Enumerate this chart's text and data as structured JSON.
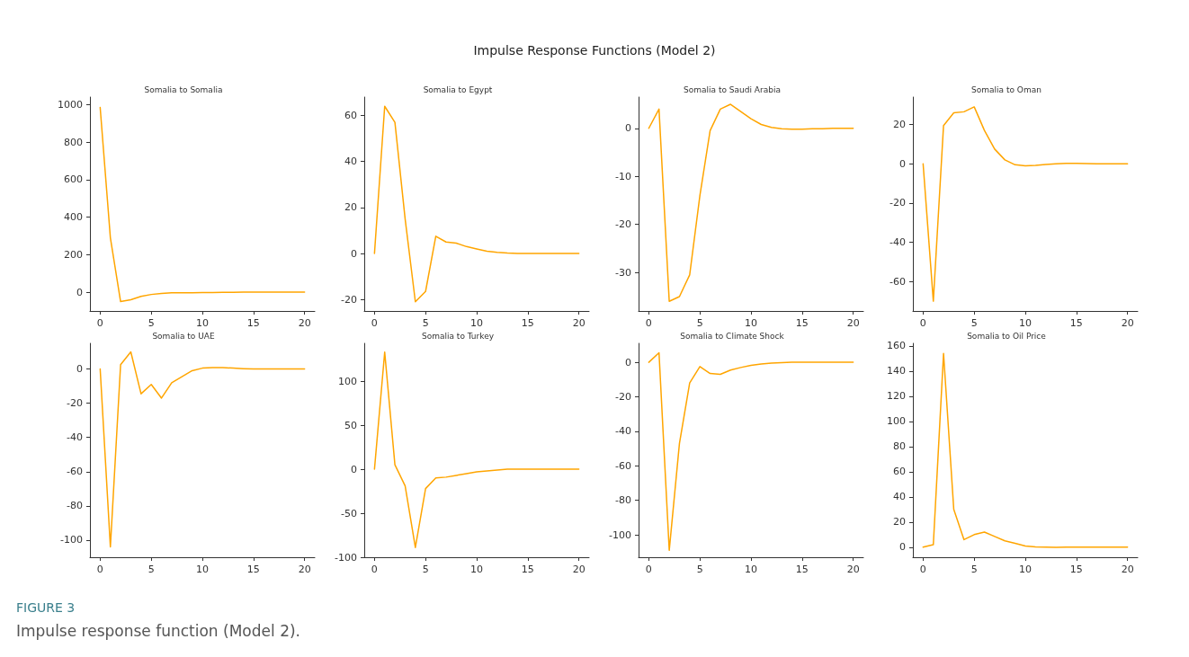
{
  "chart_data": [
    {
      "type": "line",
      "title": "Somalia to Somalia",
      "annotations": [
        "Impulse Response Functions (Model 2)"
      ],
      "x": [
        0,
        1,
        2,
        3,
        4,
        5,
        6,
        7,
        8,
        9,
        10,
        11,
        12,
        13,
        14,
        15,
        16,
        17,
        18,
        19,
        20
      ],
      "xlim": [
        -1,
        21
      ],
      "xticks": [
        0,
        5,
        10,
        15,
        20
      ],
      "ylim": [
        -100,
        1040
      ],
      "yticks": [
        0,
        200,
        400,
        600,
        800,
        1000
      ],
      "grid": false,
      "marker": "none",
      "line_style": "solid",
      "series": [
        {
          "color": "#ffa500",
          "values": [
            985,
            290,
            -50,
            -40,
            -22,
            -12,
            -7,
            -3,
            -3,
            -3,
            -2,
            -2,
            -1,
            -1,
            0,
            0,
            0,
            0,
            0,
            0,
            0
          ]
        }
      ]
    },
    {
      "type": "line",
      "title": "Somalia to Egypt",
      "x": [
        0,
        1,
        2,
        3,
        4,
        5,
        6,
        7,
        8,
        9,
        10,
        11,
        12,
        13,
        14,
        15,
        16,
        17,
        18,
        19,
        20
      ],
      "xlim": [
        -1,
        21
      ],
      "xticks": [
        0,
        5,
        10,
        15,
        20
      ],
      "ylim": [
        -25,
        68
      ],
      "yticks": [
        -20,
        0,
        20,
        40,
        60
      ],
      "grid": false,
      "marker": "none",
      "line_style": "solid",
      "series": [
        {
          "color": "#ffa500",
          "values": [
            0,
            64,
            57,
            15,
            -21,
            -16.5,
            7.5,
            5,
            4.5,
            3,
            2,
            1,
            0.5,
            0.2,
            0,
            0,
            0,
            0,
            0,
            0,
            0
          ]
        }
      ]
    },
    {
      "type": "line",
      "title": "Somalia to Saudi Arabia",
      "x": [
        0,
        1,
        2,
        3,
        4,
        5,
        6,
        7,
        8,
        9,
        10,
        11,
        12,
        13,
        14,
        15,
        16,
        17,
        18,
        19,
        20
      ],
      "xlim": [
        -1,
        21
      ],
      "xticks": [
        0,
        5,
        10,
        15,
        20
      ],
      "ylim": [
        -38,
        6.5
      ],
      "yticks": [
        -30,
        -20,
        -10,
        0
      ],
      "grid": false,
      "marker": "none",
      "line_style": "solid",
      "series": [
        {
          "color": "#ffa500",
          "values": [
            0,
            4,
            -36,
            -35,
            -30.5,
            -14,
            -0.5,
            4,
            5,
            3.5,
            2,
            0.8,
            0.2,
            -0.1,
            -0.2,
            -0.2,
            -0.1,
            -0.1,
            0,
            0,
            0
          ]
        }
      ]
    },
    {
      "type": "line",
      "title": "Somalia to Oman",
      "x": [
        0,
        1,
        2,
        3,
        4,
        5,
        6,
        7,
        8,
        9,
        10,
        11,
        12,
        13,
        14,
        15,
        16,
        17,
        18,
        19,
        20
      ],
      "xlim": [
        -1,
        21
      ],
      "xticks": [
        0,
        5,
        10,
        15,
        20
      ],
      "ylim": [
        -75,
        34
      ],
      "yticks": [
        -60,
        -40,
        -20,
        0,
        20
      ],
      "grid": false,
      "marker": "none",
      "line_style": "solid",
      "series": [
        {
          "color": "#ffa500",
          "values": [
            0,
            -70,
            19.5,
            26,
            26.5,
            29,
            17,
            7.5,
            2,
            -0.5,
            -1,
            -0.8,
            -0.3,
            0,
            0.2,
            0.2,
            0.1,
            0,
            0,
            0,
            0
          ]
        }
      ]
    },
    {
      "type": "line",
      "title": "Somalia to UAE",
      "x": [
        0,
        1,
        2,
        3,
        4,
        5,
        6,
        7,
        8,
        9,
        10,
        11,
        12,
        13,
        14,
        15,
        16,
        17,
        18,
        19,
        20
      ],
      "xlim": [
        -1,
        21
      ],
      "xticks": [
        0,
        5,
        10,
        15,
        20
      ],
      "ylim": [
        -110,
        15
      ],
      "yticks": [
        -100,
        -80,
        -60,
        -40,
        -20,
        0
      ],
      "grid": false,
      "marker": "none",
      "line_style": "solid",
      "series": [
        {
          "color": "#ffa500",
          "values": [
            0,
            -104,
            2.5,
            10,
            -14.5,
            -9,
            -17,
            -8,
            -4.5,
            -1,
            0.5,
            0.8,
            0.8,
            0.5,
            0.2,
            0,
            0,
            0,
            0,
            0,
            0
          ]
        }
      ]
    },
    {
      "type": "line",
      "title": "Somalia to Turkey",
      "x": [
        0,
        1,
        2,
        3,
        4,
        5,
        6,
        7,
        8,
        9,
        10,
        11,
        12,
        13,
        14,
        15,
        16,
        17,
        18,
        19,
        20
      ],
      "xlim": [
        -1,
        21
      ],
      "xticks": [
        0,
        5,
        10,
        15,
        20
      ],
      "ylim": [
        -100,
        143
      ],
      "yticks": [
        -100,
        -50,
        0,
        50,
        100
      ],
      "grid": false,
      "marker": "none",
      "line_style": "solid",
      "series": [
        {
          "color": "#ffa500",
          "values": [
            0,
            133,
            5,
            -19,
            -89,
            -22,
            -10,
            -9,
            -7,
            -5,
            -3,
            -2,
            -1,
            0,
            0,
            0,
            0,
            0,
            0,
            0,
            0
          ]
        }
      ]
    },
    {
      "type": "line",
      "title": "Somalia to Climate Shock",
      "x": [
        0,
        1,
        2,
        3,
        4,
        5,
        6,
        7,
        8,
        9,
        10,
        11,
        12,
        13,
        14,
        15,
        16,
        17,
        18,
        19,
        20
      ],
      "xlim": [
        -1,
        21
      ],
      "xticks": [
        0,
        5,
        10,
        15,
        20
      ],
      "ylim": [
        -113,
        11
      ],
      "yticks": [
        -100,
        -80,
        -60,
        -40,
        -20,
        0
      ],
      "grid": false,
      "marker": "none",
      "line_style": "solid",
      "series": [
        {
          "color": "#ffa500",
          "values": [
            0,
            5.5,
            -109,
            -47,
            -12,
            -2.5,
            -6.5,
            -7,
            -4.5,
            -3,
            -1.8,
            -1,
            -0.5,
            -0.2,
            0,
            0,
            0,
            0,
            0,
            0,
            0
          ]
        }
      ]
    },
    {
      "type": "line",
      "title": "Somalia to Oil Price",
      "annotations": [
        "FIGURE 3",
        "Impulse response function (Model 2)."
      ],
      "x": [
        0,
        1,
        2,
        3,
        4,
        5,
        6,
        7,
        8,
        9,
        10,
        11,
        12,
        13,
        14,
        15,
        16,
        17,
        18,
        19,
        20
      ],
      "xlim": [
        -1,
        21
      ],
      "xticks": [
        0,
        5,
        10,
        15,
        20
      ],
      "ylim": [
        -8,
        162
      ],
      "yticks": [
        0,
        20,
        40,
        60,
        80,
        100,
        120,
        140,
        160
      ],
      "grid": false,
      "marker": "none",
      "line_style": "solid",
      "series": [
        {
          "color": "#ffa500",
          "values": [
            0,
            2,
            154,
            30,
            6,
            10,
            12,
            8.5,
            5,
            3,
            1,
            0.3,
            0,
            -0.2,
            0,
            0,
            0,
            0,
            0,
            0,
            0
          ]
        }
      ]
    }
  ]
}
